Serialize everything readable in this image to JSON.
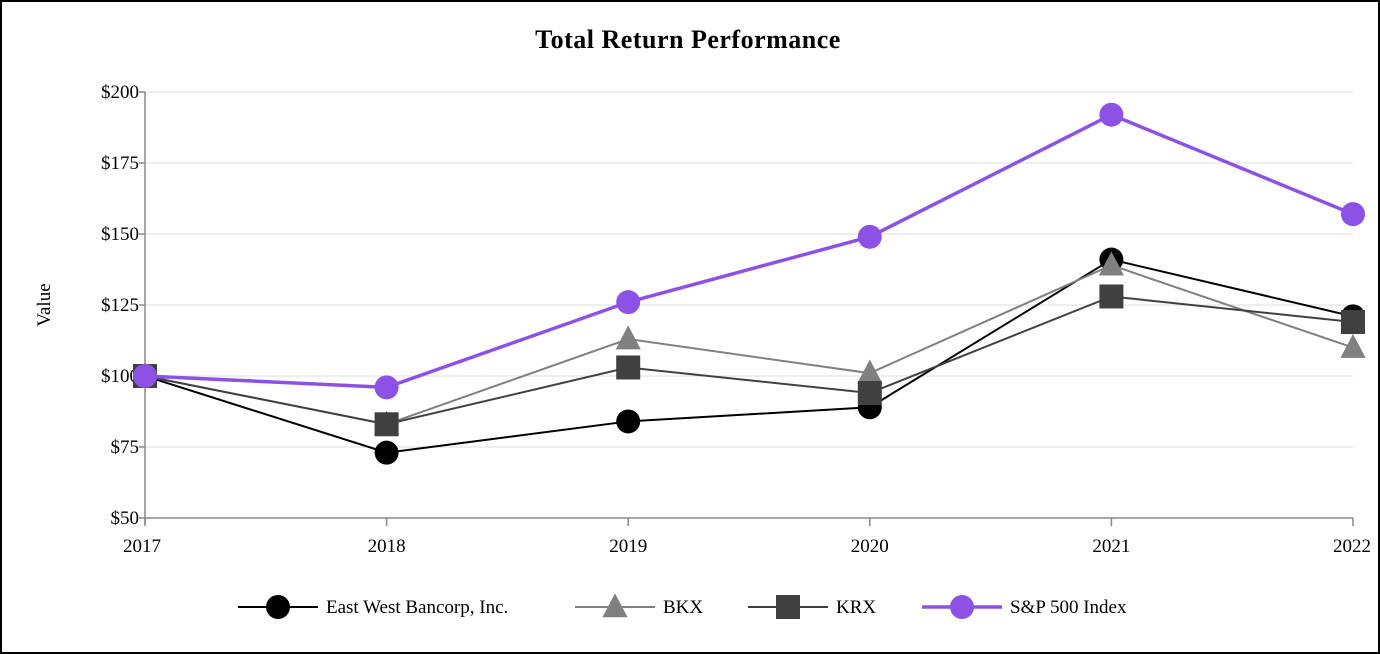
{
  "chart_data": {
    "type": "line",
    "title": "Total Return Performance",
    "xlabel": "",
    "ylabel": "Value",
    "categories": [
      "2017",
      "2018",
      "2019",
      "2020",
      "2021",
      "2022"
    ],
    "ylim": [
      50,
      200
    ],
    "yticks": [
      50,
      75,
      100,
      125,
      150,
      175,
      200
    ],
    "ytick_labels": [
      "$50",
      "$75",
      "$100",
      "$125",
      "$150",
      "$175",
      "$200"
    ],
    "grid": true,
    "legend_position": "bottom",
    "series": [
      {
        "name": "East West Bancorp, Inc.",
        "marker": "circle",
        "color": "#000000",
        "values": [
          100,
          73,
          84,
          89,
          141,
          121
        ]
      },
      {
        "name": "BKX",
        "marker": "triangle",
        "color": "#808080",
        "values": [
          100,
          83,
          113,
          101,
          139,
          110
        ]
      },
      {
        "name": "KRX",
        "marker": "square",
        "color": "#404040",
        "values": [
          100,
          83,
          103,
          94,
          128,
          119
        ]
      },
      {
        "name": "S&P 500 Index",
        "marker": "circle",
        "color": "#8c52e6",
        "values": [
          100,
          96,
          126,
          149,
          192,
          157
        ]
      }
    ]
  }
}
